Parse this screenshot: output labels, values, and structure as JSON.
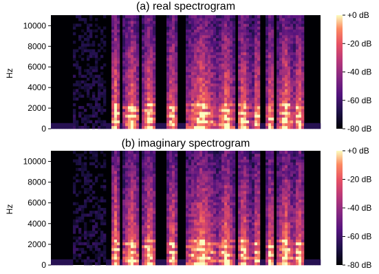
{
  "chart_data": [
    {
      "type": "heatmap",
      "title": "(a) real spectrogram",
      "ylabel": "Hz",
      "yticks": [
        0,
        2000,
        4000,
        6000,
        8000,
        10000
      ],
      "ylim": [
        0,
        11025
      ],
      "colorbar": {
        "ticks": [
          "+0 dB",
          "-20 dB",
          "-40 dB",
          "-60 dB",
          "-80 dB"
        ],
        "range": [
          -80,
          0
        ],
        "colormap": "magma"
      }
    },
    {
      "type": "heatmap",
      "title": "(b) imaginary spectrogram",
      "ylabel": "Hz",
      "yticks": [
        0,
        2000,
        4000,
        6000,
        8000,
        10000
      ],
      "ylim": [
        0,
        11025
      ],
      "colorbar": {
        "ticks": [
          "+0 dB",
          "-20 dB",
          "-40 dB",
          "-60 dB",
          "-80 dB"
        ],
        "range": [
          -80,
          0
        ],
        "colormap": "magma"
      }
    }
  ]
}
